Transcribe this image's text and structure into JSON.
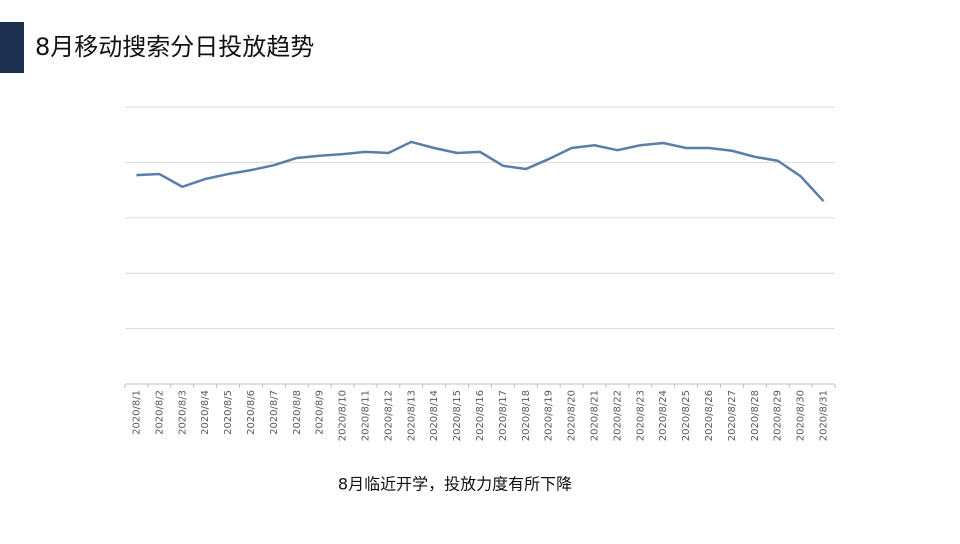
{
  "chart_data": {
    "type": "line",
    "title": "8月移动搜索分日投放趋势",
    "caption": "8月临近开学，投放力度有所下降",
    "categories": [
      "2020/8/1",
      "2020/8/2",
      "2020/8/3",
      "2020/8/4",
      "2020/8/5",
      "2020/8/6",
      "2020/8/7",
      "2020/8/8",
      "2020/8/9",
      "2020/8/10",
      "2020/8/11",
      "2020/8/12",
      "2020/8/13",
      "2020/8/14",
      "2020/8/15",
      "2020/8/16",
      "2020/8/17",
      "2020/8/18",
      "2020/8/19",
      "2020/8/20",
      "2020/8/21",
      "2020/8/22",
      "2020/8/23",
      "2020/8/24",
      "2020/8/25",
      "2020/8/26",
      "2020/8/27",
      "2020/8/28",
      "2020/8/29",
      "2020/8/30",
      "2020/8/31"
    ],
    "values": [
      3.77,
      3.79,
      3.56,
      3.7,
      3.79,
      3.86,
      3.95,
      4.08,
      4.12,
      4.15,
      4.19,
      4.17,
      4.37,
      4.26,
      4.17,
      4.19,
      3.94,
      3.88,
      4.06,
      4.26,
      4.31,
      4.22,
      4.31,
      4.35,
      4.26,
      4.26,
      4.21,
      4.1,
      4.03,
      3.75,
      3.3
    ],
    "color": "#5a7ea8",
    "ylim": [
      0,
      5
    ],
    "grid_values": [
      1,
      2,
      3,
      4,
      5
    ],
    "grid": true
  }
}
